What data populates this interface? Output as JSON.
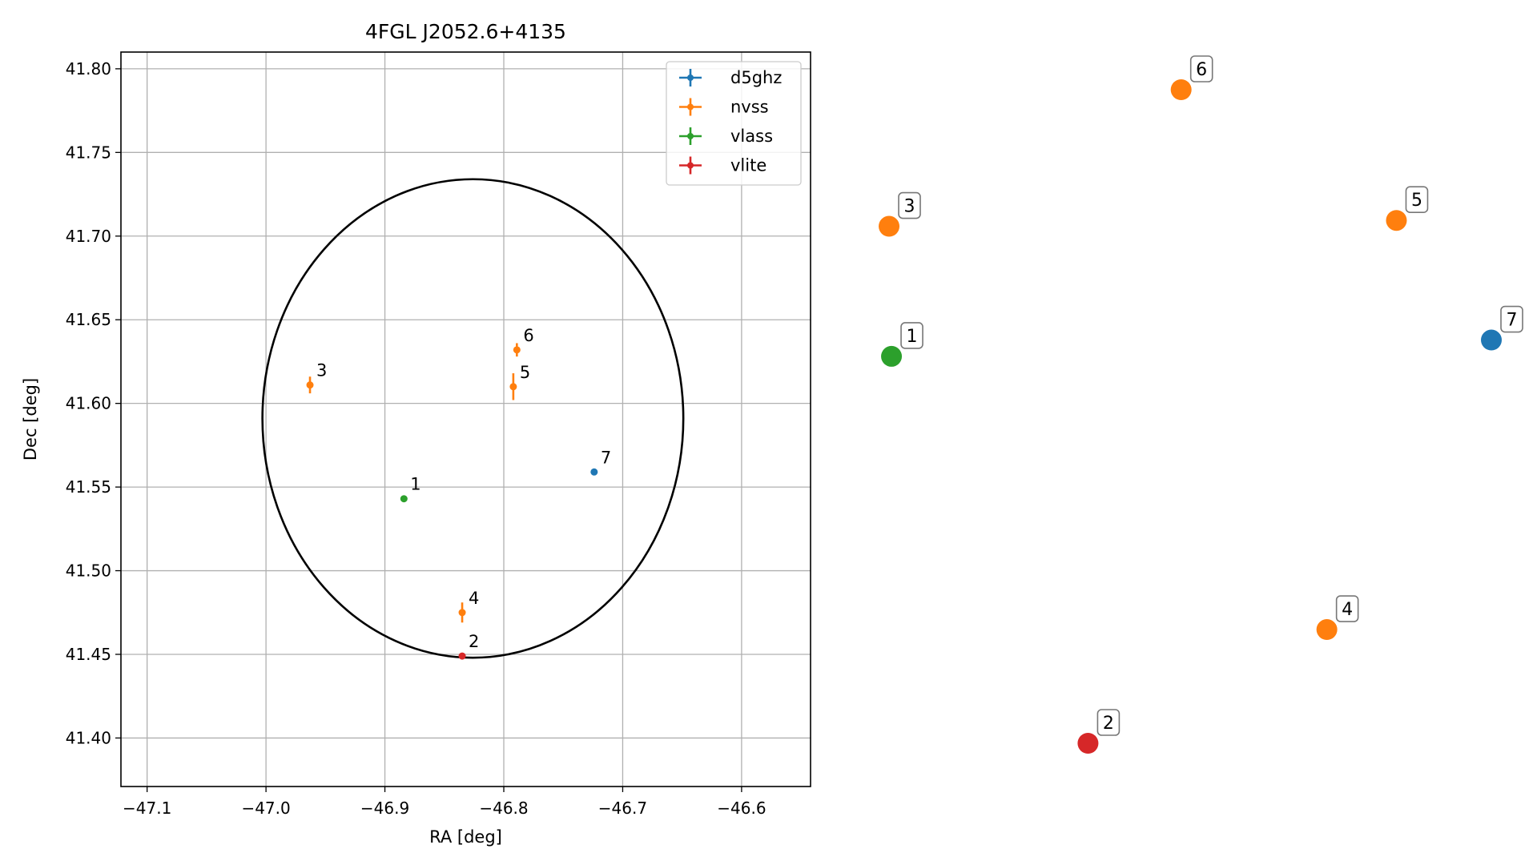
{
  "chart_data": [
    {
      "type": "scatter",
      "title": "4FGL J2052.6+4135",
      "xlabel": "RA [deg]",
      "ylabel": "Dec [deg]",
      "xlim": [
        -47.122,
        -46.542
      ],
      "ylim": [
        41.371,
        41.81
      ],
      "grid": true,
      "x_ticks": [
        -47.1,
        -47.0,
        -46.9,
        -46.8,
        -46.7,
        -46.6
      ],
      "x_tick_labels": [
        "−47.1",
        "−47.0",
        "−46.9",
        "−46.8",
        "−46.7",
        "−46.6"
      ],
      "y_ticks": [
        41.4,
        41.45,
        41.5,
        41.55,
        41.6,
        41.65,
        41.7,
        41.75,
        41.8
      ],
      "y_tick_labels": [
        "41.40",
        "41.45",
        "41.50",
        "41.55",
        "41.60",
        "41.65",
        "41.70",
        "41.75",
        "41.80"
      ],
      "legend": {
        "placement": "top-right",
        "entries": [
          {
            "name": "d5ghz",
            "color": "#1f77b4"
          },
          {
            "name": "nvss",
            "color": "#ff7f0e"
          },
          {
            "name": "vlass",
            "color": "#2ca02c"
          },
          {
            "name": "vlite",
            "color": "#d62728"
          }
        ]
      },
      "ellipse": {
        "center": [
          -46.826,
          41.591
        ],
        "half_width_ra": 0.177,
        "half_height_dec": 0.143,
        "color": "#000000"
      },
      "series": [
        {
          "name": "d5ghz",
          "color": "#1f77b4",
          "points": [
            {
              "id": "7",
              "x": -46.724,
              "y": 41.559,
              "yerr": 0.001
            }
          ]
        },
        {
          "name": "nvss",
          "color": "#ff7f0e",
          "points": [
            {
              "id": "3",
              "x": -46.963,
              "y": 41.611,
              "yerr": 0.005
            },
            {
              "id": "6",
              "x": -46.789,
              "y": 41.632,
              "yerr": 0.004
            },
            {
              "id": "5",
              "x": -46.792,
              "y": 41.61,
              "yerr": 0.008
            },
            {
              "id": "4",
              "x": -46.835,
              "y": 41.475,
              "yerr": 0.006
            }
          ]
        },
        {
          "name": "vlass",
          "color": "#2ca02c",
          "points": [
            {
              "id": "1",
              "x": -46.884,
              "y": 41.543,
              "yerr": 0.001
            }
          ]
        },
        {
          "name": "vlite",
          "color": "#d62728",
          "points": [
            {
              "id": "2",
              "x": -46.835,
              "y": 41.449,
              "yerr": 0.001
            }
          ]
        }
      ]
    },
    {
      "type": "scatter",
      "axes": "hidden",
      "points": [
        {
          "id": "6",
          "color": "#ff7f0e",
          "x": 0.487,
          "y": 1.0
        },
        {
          "id": "3",
          "color": "#ff7f0e",
          "x": 0.004,
          "y": 0.791
        },
        {
          "id": "5",
          "color": "#ff7f0e",
          "x": 0.843,
          "y": 0.8
        },
        {
          "id": "7",
          "color": "#1f77b4",
          "x": 1.0,
          "y": 0.617
        },
        {
          "id": "1",
          "color": "#2ca02c",
          "x": 0.008,
          "y": 0.592
        },
        {
          "id": "4",
          "color": "#ff7f0e",
          "x": 0.728,
          "y": 0.174
        },
        {
          "id": "2",
          "color": "#d62728",
          "x": 0.333,
          "y": 0.0
        }
      ]
    }
  ]
}
